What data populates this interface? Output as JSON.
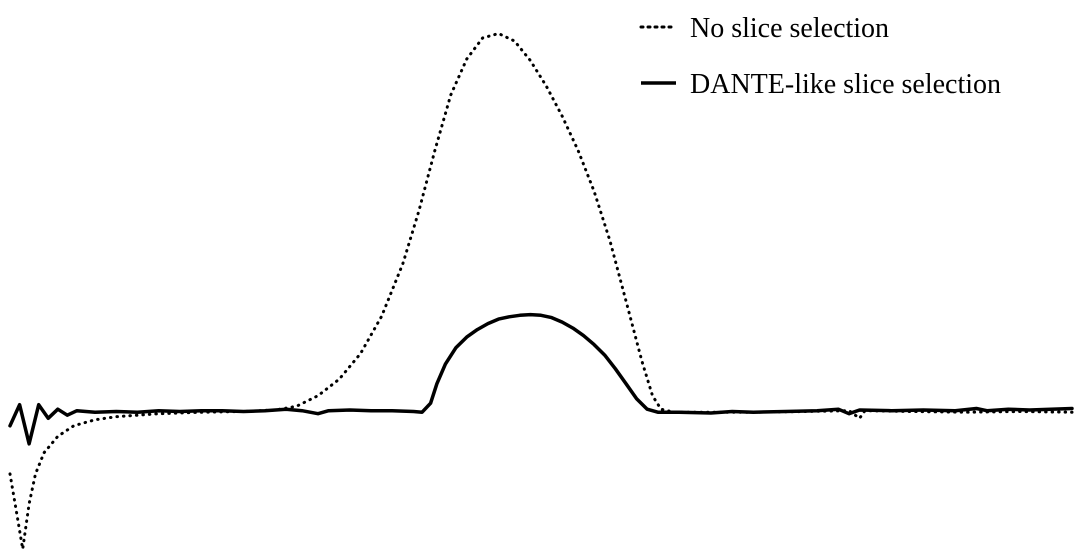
{
  "chart_data": {
    "type": "line",
    "title": "",
    "xlabel": "",
    "ylabel": "",
    "xlim": [
      0,
      100
    ],
    "ylim": [
      -5,
      30
    ],
    "grid": false,
    "axes_visible": false,
    "legend": {
      "placement": "top-right",
      "entries": [
        "No slice selection",
        "DANTE-like slice selection"
      ]
    },
    "colors": {
      "line": "#000000",
      "background": "#ffffff"
    },
    "series": [
      {
        "name": "No slice selection",
        "style": "dotted",
        "points": [
          [
            0,
            0
          ],
          [
            0.6,
            -2.5
          ],
          [
            1.2,
            -5
          ],
          [
            1.8,
            -2.0
          ],
          [
            2.4,
            0.0
          ],
          [
            3.2,
            1.4
          ],
          [
            4.5,
            2.5
          ],
          [
            6,
            3.2
          ],
          [
            8,
            3.6
          ],
          [
            10,
            3.8
          ],
          [
            14,
            4.0
          ],
          [
            18,
            4.1
          ],
          [
            22,
            4.15
          ],
          [
            25,
            4.25
          ],
          [
            27,
            4.5
          ],
          [
            29,
            5.2
          ],
          [
            31,
            6.3
          ],
          [
            33,
            8.0
          ],
          [
            35,
            10.5
          ],
          [
            37,
            14.0
          ],
          [
            38.5,
            17.5
          ],
          [
            40,
            21.5
          ],
          [
            41.5,
            25.2
          ],
          [
            43,
            27.6
          ],
          [
            44.5,
            29.0
          ],
          [
            46,
            29.3
          ],
          [
            47.5,
            28.8
          ],
          [
            49,
            27.5
          ],
          [
            50.5,
            25.8
          ],
          [
            52,
            23.8
          ],
          [
            53.5,
            21.5
          ],
          [
            55,
            18.8
          ],
          [
            56.5,
            15.5
          ],
          [
            58,
            11.5
          ],
          [
            59.5,
            7.5
          ],
          [
            60.5,
            5.2
          ],
          [
            61.3,
            4.3
          ],
          [
            62.5,
            4.1
          ],
          [
            66,
            4.1
          ],
          [
            70,
            4.1
          ],
          [
            75,
            4.15
          ],
          [
            79,
            4.2
          ],
          [
            80,
            3.7
          ],
          [
            80.5,
            4.2
          ],
          [
            85,
            4.15
          ],
          [
            90,
            4.1
          ],
          [
            95,
            4.15
          ],
          [
            100,
            4.1
          ]
        ]
      },
      {
        "name": "DANTE-like slice selection",
        "style": "solid",
        "points": [
          [
            0,
            3.2
          ],
          [
            0.9,
            4.6
          ],
          [
            1.8,
            2.0
          ],
          [
            2.7,
            4.6
          ],
          [
            3.6,
            3.7
          ],
          [
            4.5,
            4.3
          ],
          [
            5.4,
            3.9
          ],
          [
            6.3,
            4.2
          ],
          [
            8,
            4.1
          ],
          [
            10,
            4.15
          ],
          [
            12,
            4.1
          ],
          [
            14,
            4.2
          ],
          [
            16,
            4.15
          ],
          [
            18,
            4.2
          ],
          [
            20,
            4.2
          ],
          [
            22,
            4.15
          ],
          [
            24,
            4.2
          ],
          [
            26,
            4.3
          ],
          [
            27.5,
            4.2
          ],
          [
            29,
            4.0
          ],
          [
            30,
            4.2
          ],
          [
            32,
            4.25
          ],
          [
            34,
            4.2
          ],
          [
            36,
            4.2
          ],
          [
            38,
            4.15
          ],
          [
            38.8,
            4.1
          ],
          [
            39.6,
            4.7
          ],
          [
            40.2,
            6.0
          ],
          [
            41,
            7.3
          ],
          [
            42,
            8.4
          ],
          [
            43,
            9.1
          ],
          [
            44,
            9.6
          ],
          [
            45,
            10.0
          ],
          [
            46,
            10.3
          ],
          [
            47,
            10.45
          ],
          [
            48,
            10.55
          ],
          [
            49,
            10.6
          ],
          [
            50,
            10.55
          ],
          [
            51,
            10.4
          ],
          [
            52,
            10.1
          ],
          [
            53,
            9.7
          ],
          [
            54,
            9.2
          ],
          [
            55,
            8.6
          ],
          [
            56,
            7.9
          ],
          [
            57,
            7.0
          ],
          [
            58,
            6.0
          ],
          [
            59,
            5.0
          ],
          [
            60,
            4.3
          ],
          [
            61,
            4.1
          ],
          [
            63,
            4.1
          ],
          [
            66,
            4.05
          ],
          [
            68,
            4.15
          ],
          [
            70,
            4.1
          ],
          [
            73,
            4.15
          ],
          [
            76,
            4.2
          ],
          [
            78,
            4.3
          ],
          [
            79,
            4.0
          ],
          [
            80,
            4.25
          ],
          [
            83,
            4.2
          ],
          [
            86,
            4.25
          ],
          [
            89,
            4.2
          ],
          [
            91,
            4.35
          ],
          [
            92,
            4.2
          ],
          [
            94,
            4.3
          ],
          [
            96,
            4.25
          ],
          [
            98,
            4.3
          ],
          [
            100,
            4.35
          ]
        ]
      }
    ]
  }
}
